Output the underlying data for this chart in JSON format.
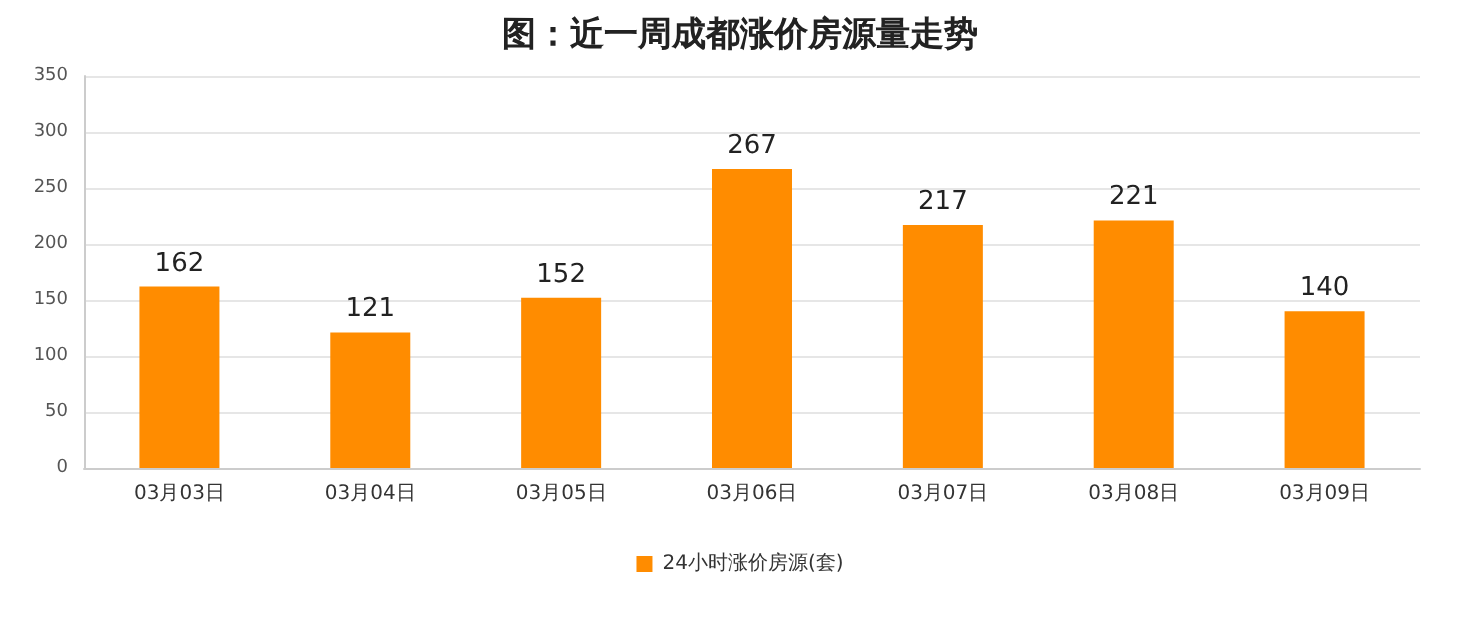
{
  "chart_data": {
    "type": "bar",
    "title": "图：近一周成都涨价房源量走势",
    "categories": [
      "03月03日",
      "03月04日",
      "03月05日",
      "03月06日",
      "03月07日",
      "03月08日",
      "03月09日"
    ],
    "series": [
      {
        "name": "24小时涨价房源(套)",
        "color": "#ff8c00",
        "values": [
          162,
          121,
          152,
          267,
          217,
          221,
          140
        ]
      }
    ],
    "ylim": [
      0,
      350
    ],
    "yticks": [
      0,
      50,
      100,
      150,
      200,
      250,
      300,
      350
    ],
    "grid": "y",
    "legend": "bottom",
    "data_labels": true
  }
}
